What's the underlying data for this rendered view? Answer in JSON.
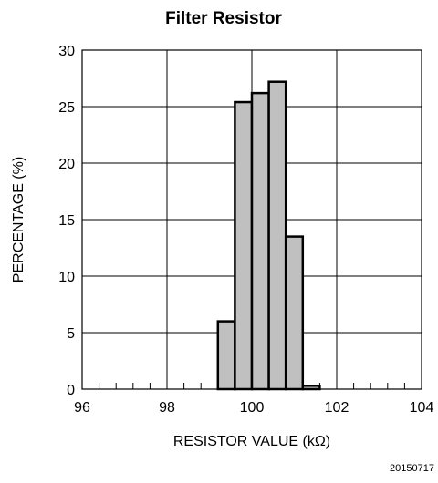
{
  "chart_data": {
    "type": "bar",
    "title": "Filter Resistor",
    "xlabel": "RESISTOR VALUE (kΩ)",
    "ylabel": "PERCENTAGE (%)",
    "xlim": [
      96,
      104
    ],
    "ylim": [
      0,
      30
    ],
    "x_ticks": [
      96,
      98,
      100,
      102,
      104
    ],
    "y_ticks": [
      0,
      5,
      10,
      15,
      20,
      25,
      30
    ],
    "bin_width": 0.4,
    "bins": [
      {
        "x_start": 99.2,
        "x_end": 99.6,
        "value": 6.0
      },
      {
        "x_start": 99.6,
        "x_end": 100.0,
        "value": 25.4
      },
      {
        "x_start": 100.0,
        "x_end": 100.4,
        "value": 26.2
      },
      {
        "x_start": 100.4,
        "x_end": 100.8,
        "value": 27.2
      },
      {
        "x_start": 100.8,
        "x_end": 101.2,
        "value": 13.5
      },
      {
        "x_start": 101.2,
        "x_end": 101.6,
        "value": 0.3
      }
    ],
    "grid": true,
    "bar_color": "#c0c0c0",
    "edge_color": "#000000"
  },
  "figure_id": "20150717"
}
